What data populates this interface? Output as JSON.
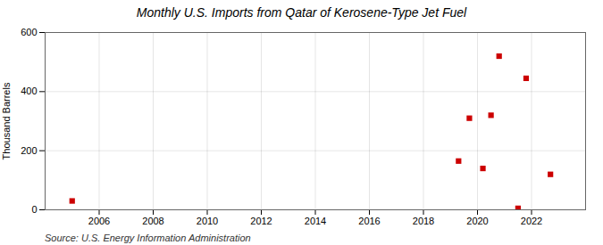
{
  "chart_data": {
    "type": "scatter",
    "title": "Monthly U.S. Imports from Qatar of Kerosene-Type Jet Fuel",
    "ylabel": "Thousand Barrels",
    "annotation": "Source: U.S. Energy Information Administration",
    "x": [
      2005.0,
      2019.3,
      2019.7,
      2020.2,
      2020.5,
      2020.8,
      2021.5,
      2021.8,
      2022.7
    ],
    "values": [
      30,
      165,
      310,
      140,
      320,
      520,
      5,
      445,
      120
    ],
    "color": "#cc0000",
    "marker": "square",
    "xlim": [
      2004,
      2024
    ],
    "xticks": [
      2006,
      2008,
      2010,
      2012,
      2014,
      2016,
      2018,
      2020,
      2022
    ],
    "ylim": [
      0,
      600
    ],
    "yticks": [
      0,
      200,
      400,
      600
    ],
    "grid": true
  }
}
